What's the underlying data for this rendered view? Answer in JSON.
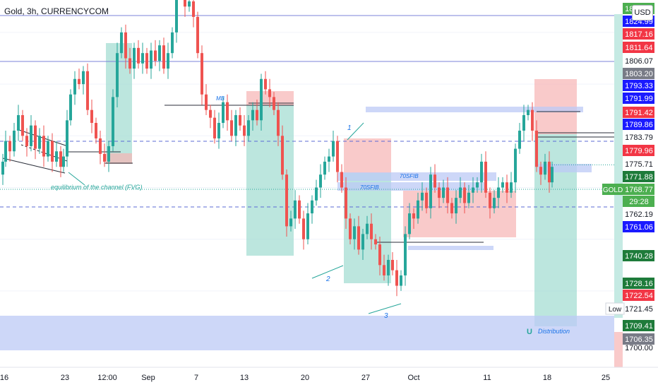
{
  "header": {
    "title": "Gold, 3h, CURRENCYCOM",
    "currency": "USD"
  },
  "price_axis": {
    "labels": [
      {
        "text": "1830.08",
        "bg": "#4caf50",
        "fg": "#ffffff"
      },
      {
        "text": "1824.99",
        "bg": "#1a1aff",
        "fg": "#ffffff"
      },
      {
        "text": "1817.16",
        "bg": "#f23645",
        "fg": "#ffffff"
      },
      {
        "text": "1811.64",
        "bg": "#f23645",
        "fg": "#ffffff"
      },
      {
        "text": "1806.07",
        "bg": "#ffffff",
        "fg": "#131722"
      },
      {
        "text": "1803.20",
        "bg": "#787b86",
        "fg": "#ffffff"
      },
      {
        "text": "1793.33",
        "bg": "#1a1aff",
        "fg": "#ffffff"
      },
      {
        "text": "1791.99",
        "bg": "#1a1aff",
        "fg": "#ffffff"
      },
      {
        "text": "1791.42",
        "bg": "#f23645",
        "fg": "#ffffff"
      },
      {
        "text": "1789.86",
        "bg": "#1a1aff",
        "fg": "#ffffff"
      },
      {
        "text": "1783.79",
        "bg": "#ffffff",
        "fg": "#131722"
      },
      {
        "text": "1779.96",
        "bg": "#f23645",
        "fg": "#ffffff"
      },
      {
        "text": "1775.71",
        "bg": "#ffffff",
        "fg": "#131722"
      },
      {
        "text": "1771.88",
        "bg": "#1e7b3a",
        "fg": "#ffffff"
      },
      {
        "text": "1768.77",
        "bg": "#4caf50",
        "fg": "#ffffff"
      },
      {
        "text": "29:28",
        "bg": "#4caf50",
        "fg": "#ffffff"
      },
      {
        "text": "1762.19",
        "bg": "#ffffff",
        "fg": "#131722"
      },
      {
        "text": "1761.06",
        "bg": "#1a1aff",
        "fg": "#ffffff"
      },
      {
        "text": "1740.28",
        "bg": "#1e7b3a",
        "fg": "#ffffff"
      },
      {
        "text": "1728.16",
        "bg": "#1e7b3a",
        "fg": "#ffffff"
      },
      {
        "text": "1722.54",
        "bg": "#f23645",
        "fg": "#ffffff"
      },
      {
        "text": "1721.45",
        "bg": "#ffffff",
        "fg": "#131722"
      },
      {
        "text": "1709.41",
        "bg": "#1e7b3a",
        "fg": "#ffffff"
      },
      {
        "text": "1706.35",
        "bg": "#787b86",
        "fg": "#ffffff"
      },
      {
        "text": "1700.00",
        "bg": "#ffffff",
        "fg": "#131722"
      }
    ],
    "symbol_tag": "GOLD",
    "low_tag": "Low"
  },
  "time_axis": {
    "labels": [
      "16",
      "23",
      "12:00",
      "Sep",
      "7",
      "13",
      "20",
      "27",
      "Oct",
      "11",
      "18",
      "25"
    ]
  },
  "chart_data": {
    "type": "candlestick",
    "symbol": "Gold",
    "timeframe": "3h",
    "source": "CURRENCYCOM",
    "last_price": 1768.77,
    "countdown": "29:28",
    "period_low": 1721.45,
    "x_ticks": [
      "16",
      "23",
      "12:00",
      "Sep",
      "7",
      "13",
      "20",
      "27",
      "Oct",
      "11",
      "18",
      "25"
    ],
    "path_points": [
      {
        "x": 0,
        "y": 1765
      },
      {
        "x": 4,
        "y": 1770
      },
      {
        "x": 8,
        "y": 1778
      },
      {
        "x": 14,
        "y": 1774
      },
      {
        "x": 20,
        "y": 1782
      },
      {
        "x": 26,
        "y": 1788
      },
      {
        "x": 32,
        "y": 1780
      },
      {
        "x": 38,
        "y": 1776
      },
      {
        "x": 44,
        "y": 1784
      },
      {
        "x": 50,
        "y": 1775
      },
      {
        "x": 56,
        "y": 1780
      },
      {
        "x": 62,
        "y": 1772
      },
      {
        "x": 68,
        "y": 1778
      },
      {
        "x": 74,
        "y": 1770
      },
      {
        "x": 80,
        "y": 1774
      },
      {
        "x": 86,
        "y": 1768
      },
      {
        "x": 90,
        "y": 1772
      },
      {
        "x": 95,
        "y": 1786
      },
      {
        "x": 100,
        "y": 1796
      },
      {
        "x": 106,
        "y": 1802
      },
      {
        "x": 112,
        "y": 1800
      },
      {
        "x": 118,
        "y": 1805
      },
      {
        "x": 124,
        "y": 1790
      },
      {
        "x": 130,
        "y": 1785
      },
      {
        "x": 136,
        "y": 1779
      },
      {
        "x": 142,
        "y": 1773
      },
      {
        "x": 148,
        "y": 1770
      },
      {
        "x": 154,
        "y": 1776
      },
      {
        "x": 160,
        "y": 1795
      },
      {
        "x": 166,
        "y": 1812
      },
      {
        "x": 172,
        "y": 1820
      },
      {
        "x": 178,
        "y": 1810
      },
      {
        "x": 184,
        "y": 1806
      },
      {
        "x": 190,
        "y": 1814
      },
      {
        "x": 196,
        "y": 1808
      },
      {
        "x": 202,
        "y": 1812
      },
      {
        "x": 208,
        "y": 1806
      },
      {
        "x": 214,
        "y": 1813
      },
      {
        "x": 220,
        "y": 1809
      },
      {
        "x": 226,
        "y": 1815
      },
      {
        "x": 232,
        "y": 1806
      },
      {
        "x": 238,
        "y": 1812
      },
      {
        "x": 244,
        "y": 1820
      },
      {
        "x": 250,
        "y": 1840
      },
      {
        "x": 256,
        "y": 1836
      },
      {
        "x": 262,
        "y": 1830
      },
      {
        "x": 268,
        "y": 1832
      },
      {
        "x": 274,
        "y": 1826
      },
      {
        "x": 280,
        "y": 1812
      },
      {
        "x": 286,
        "y": 1796
      },
      {
        "x": 292,
        "y": 1790
      },
      {
        "x": 298,
        "y": 1787
      },
      {
        "x": 304,
        "y": 1779
      },
      {
        "x": 310,
        "y": 1785
      },
      {
        "x": 316,
        "y": 1793
      },
      {
        "x": 322,
        "y": 1786
      },
      {
        "x": 328,
        "y": 1780
      },
      {
        "x": 334,
        "y": 1788
      },
      {
        "x": 340,
        "y": 1784
      },
      {
        "x": 346,
        "y": 1780
      },
      {
        "x": 352,
        "y": 1786
      },
      {
        "x": 358,
        "y": 1790
      },
      {
        "x": 364,
        "y": 1786
      },
      {
        "x": 370,
        "y": 1802
      },
      {
        "x": 376,
        "y": 1798
      },
      {
        "x": 382,
        "y": 1795
      },
      {
        "x": 388,
        "y": 1790
      },
      {
        "x": 394,
        "y": 1780
      },
      {
        "x": 400,
        "y": 1765
      },
      {
        "x": 406,
        "y": 1745
      },
      {
        "x": 412,
        "y": 1748
      },
      {
        "x": 418,
        "y": 1755
      },
      {
        "x": 424,
        "y": 1748
      },
      {
        "x": 430,
        "y": 1740
      },
      {
        "x": 436,
        "y": 1750
      },
      {
        "x": 442,
        "y": 1755
      },
      {
        "x": 448,
        "y": 1760
      },
      {
        "x": 454,
        "y": 1765
      },
      {
        "x": 460,
        "y": 1770
      },
      {
        "x": 466,
        "y": 1772
      },
      {
        "x": 472,
        "y": 1778
      },
      {
        "x": 478,
        "y": 1766
      },
      {
        "x": 484,
        "y": 1760
      },
      {
        "x": 490,
        "y": 1748
      },
      {
        "x": 496,
        "y": 1740
      },
      {
        "x": 502,
        "y": 1745
      },
      {
        "x": 508,
        "y": 1736
      },
      {
        "x": 514,
        "y": 1742
      },
      {
        "x": 520,
        "y": 1746
      },
      {
        "x": 526,
        "y": 1740
      },
      {
        "x": 532,
        "y": 1738
      },
      {
        "x": 538,
        "y": 1730
      },
      {
        "x": 544,
        "y": 1726
      },
      {
        "x": 550,
        "y": 1732
      },
      {
        "x": 556,
        "y": 1728
      },
      {
        "x": 562,
        "y": 1722
      },
      {
        "x": 568,
        "y": 1726
      },
      {
        "x": 574,
        "y": 1742
      },
      {
        "x": 580,
        "y": 1750
      },
      {
        "x": 586,
        "y": 1748
      },
      {
        "x": 592,
        "y": 1755
      },
      {
        "x": 598,
        "y": 1758
      },
      {
        "x": 604,
        "y": 1752
      },
      {
        "x": 610,
        "y": 1765
      },
      {
        "x": 616,
        "y": 1760
      },
      {
        "x": 622,
        "y": 1756
      },
      {
        "x": 628,
        "y": 1760
      },
      {
        "x": 634,
        "y": 1754
      },
      {
        "x": 640,
        "y": 1750
      },
      {
        "x": 646,
        "y": 1756
      },
      {
        "x": 652,
        "y": 1760
      },
      {
        "x": 658,
        "y": 1754
      },
      {
        "x": 664,
        "y": 1758
      },
      {
        "x": 670,
        "y": 1760
      },
      {
        "x": 676,
        "y": 1762
      },
      {
        "x": 682,
        "y": 1770
      },
      {
        "x": 688,
        "y": 1758
      },
      {
        "x": 694,
        "y": 1752
      },
      {
        "x": 700,
        "y": 1756
      },
      {
        "x": 706,
        "y": 1760
      },
      {
        "x": 712,
        "y": 1762
      },
      {
        "x": 718,
        "y": 1758
      },
      {
        "x": 724,
        "y": 1762
      },
      {
        "x": 730,
        "y": 1775
      },
      {
        "x": 736,
        "y": 1782
      },
      {
        "x": 742,
        "y": 1788
      },
      {
        "x": 748,
        "y": 1790
      },
      {
        "x": 754,
        "y": 1782
      },
      {
        "x": 760,
        "y": 1768
      },
      {
        "x": 766,
        "y": 1765
      },
      {
        "x": 772,
        "y": 1770
      },
      {
        "x": 778,
        "y": 1762
      },
      {
        "x": 782,
        "y": 1768
      }
    ],
    "annotations": [
      {
        "text": "equilibrium of the channel (FVG)"
      },
      {
        "text": "MB"
      },
      {
        "text": "70SFIB"
      },
      {
        "text": "70SFIB"
      },
      {
        "text": "1"
      },
      {
        "text": "2"
      },
      {
        "text": "3"
      },
      {
        "text": "Distribution"
      }
    ]
  },
  "colors": {
    "up": "#26a69a",
    "down": "#ef5350",
    "green_zone": "#9fdcd0",
    "red_zone": "#f7b4b4",
    "blue_zone": "#bcc9f5",
    "hline": "#5b6bd6",
    "axis_bg": "#ffffff",
    "grid": "#f0f3fa"
  }
}
